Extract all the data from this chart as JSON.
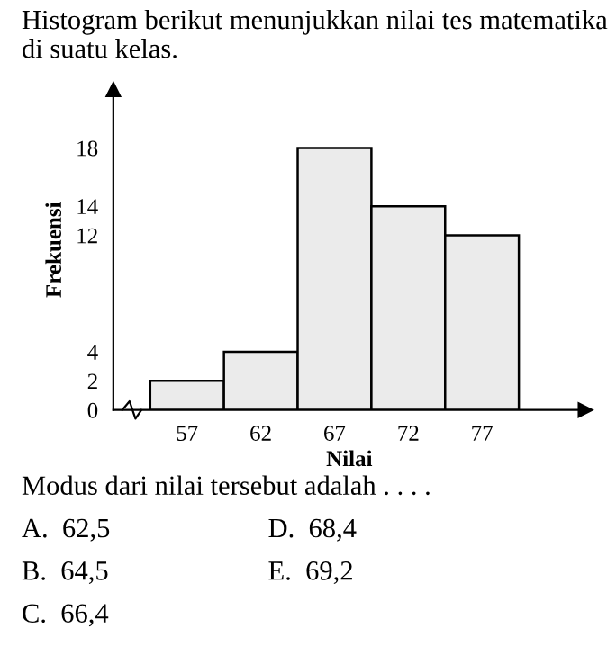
{
  "chart_data": {
    "type": "histogram",
    "title": "Histogram berikut menunjukkan nilai tes matematika di suatu kelas.",
    "xlabel": "Nilai",
    "ylabel": "Frekuensi",
    "bins": [
      54.5,
      59.5,
      64.5,
      69.5,
      74.5,
      79.5
    ],
    "values": [
      2,
      4,
      18,
      14,
      12
    ],
    "color": "#ebebeb",
    "xlim": [
      52,
      84
    ],
    "ylim": [
      0,
      22
    ],
    "xticks": [
      57,
      62,
      67,
      72,
      77
    ],
    "yticks": [
      0,
      2,
      4,
      12,
      14,
      18
    ],
    "grid": false,
    "annotations": [
      "Modus dari nilai tersebut adalah . . . .",
      "A.  62,5",
      "B.  64,5",
      "C.  66,4",
      "D.  68,4",
      "E.  69,2"
    ]
  }
}
